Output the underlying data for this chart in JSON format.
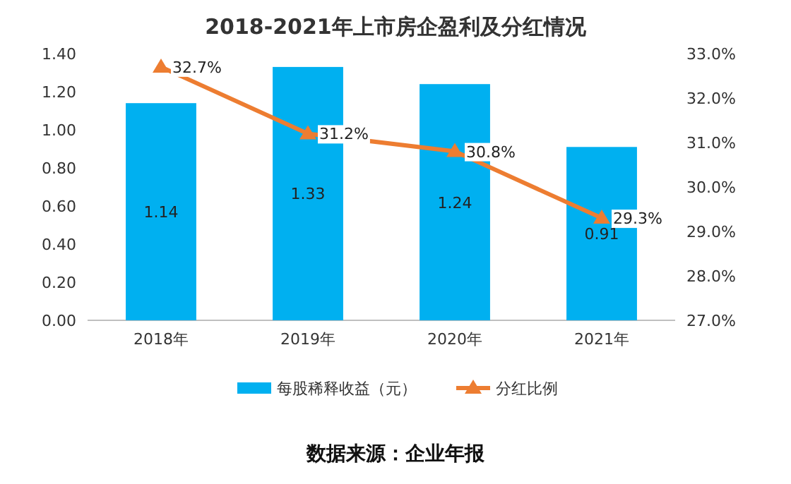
{
  "chart_data": {
    "type": "bar",
    "title": "2018-2021年上市房企盈利及分红情况",
    "categories": [
      "2018年",
      "2019年",
      "2020年",
      "2021年"
    ],
    "series": [
      {
        "name": "每股稀释收益（元）",
        "color": "#00b0f0",
        "values": [
          1.14,
          1.33,
          1.24,
          0.91
        ],
        "value_labels": [
          "1.14",
          "1.33",
          "1.24",
          "0.91"
        ]
      },
      {
        "name": "分红比例",
        "type": "line",
        "axis": "y2",
        "color": "#ed7d31",
        "marker": "triangle",
        "values": [
          32.7,
          31.2,
          30.8,
          29.3
        ],
        "value_labels": [
          "32.7%",
          "31.2%",
          "30.8%",
          "29.3%"
        ]
      }
    ],
    "ylim": [
      0,
      1.4
    ],
    "yticks": [
      {
        "value": 0,
        "label": "0.00"
      },
      {
        "value": 0.2,
        "label": "0.20"
      },
      {
        "value": 0.4,
        "label": "0.40"
      },
      {
        "value": 0.6,
        "label": "0.60"
      },
      {
        "value": 0.8,
        "label": "0.80"
      },
      {
        "value": 1.0,
        "label": "1.00"
      },
      {
        "value": 1.2,
        "label": "1.20"
      },
      {
        "value": 1.4,
        "label": "1.40"
      }
    ],
    "y2lim": [
      27,
      33
    ],
    "y2ticks": [
      {
        "value": 27,
        "label": "27.0%"
      },
      {
        "value": 28,
        "label": "28.0%"
      },
      {
        "value": 29,
        "label": "29.0%"
      },
      {
        "value": 30,
        "label": "30.0%"
      },
      {
        "value": 31,
        "label": "31.0%"
      },
      {
        "value": 32,
        "label": "32.0%"
      },
      {
        "value": 33,
        "label": "33.0%"
      }
    ],
    "legend": "bottom",
    "annotations": [
      "数据来源：企业年报"
    ]
  }
}
